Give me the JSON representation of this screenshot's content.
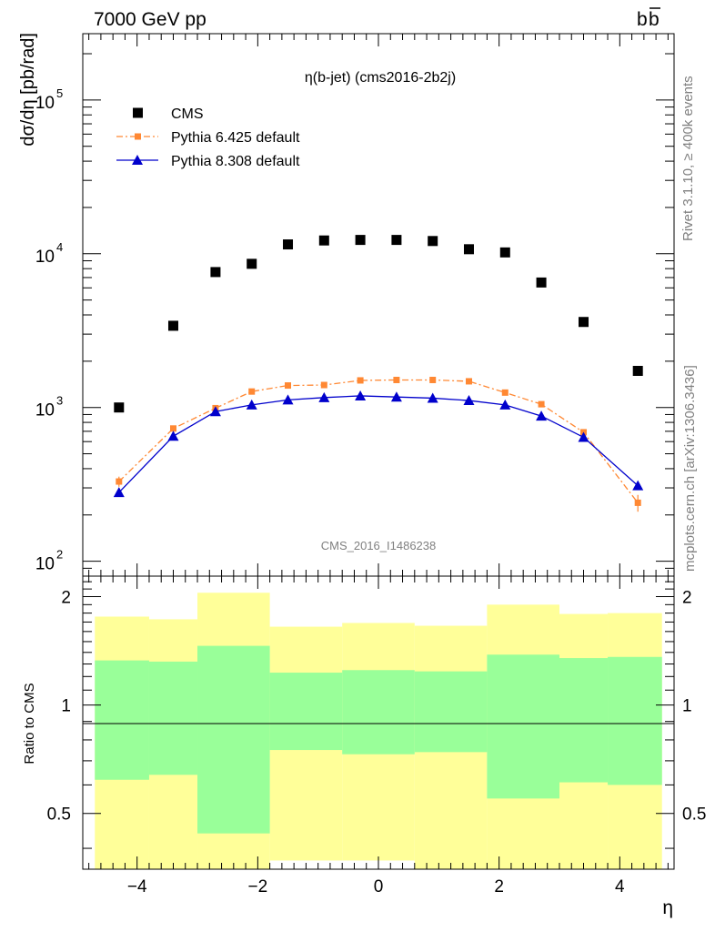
{
  "header": {
    "left": "7000 GeV pp",
    "right": "b",
    "right_bar": "b"
  },
  "side_labels": {
    "rivet": "Rivet 3.1.10, ≥ 400k events",
    "mcplots": "mcplots.cern.ch [arXiv:1306.3436]"
  },
  "watermark": "CMS_2016_I1486238",
  "chart_data": [
    {
      "type": "scatter",
      "panel": "main",
      "title": "η(b-jet) (cms2016-2b2j)",
      "ylabel": "dσ/dη [pb/rad]",
      "yscale": "log",
      "xlim": [
        -4.9,
        4.9
      ],
      "ylim": [
        80,
        270000
      ],
      "yticks": [
        {
          "value": 100,
          "base": "10",
          "exp": "2"
        },
        {
          "value": 1000,
          "base": "10",
          "exp": "3"
        },
        {
          "value": 10000,
          "base": "10",
          "exp": "4"
        },
        {
          "value": 100000,
          "base": "10",
          "exp": "5"
        }
      ],
      "legend_position": "top-left",
      "series": [
        {
          "name": "CMS",
          "color": "#000000",
          "marker": "square",
          "line": "none",
          "x": [
            -4.3,
            -3.4,
            -2.7,
            -2.1,
            -1.5,
            -0.9,
            -0.3,
            0.3,
            0.9,
            1.5,
            2.1,
            2.7,
            3.4,
            4.3
          ],
          "y": [
            1000,
            3400,
            7600,
            8600,
            11500,
            12200,
            12300,
            12300,
            12100,
            10700,
            10200,
            6500,
            3600,
            1730
          ]
        },
        {
          "name": "Pythia 6.425 default",
          "color": "#ff8833",
          "marker": "square-small",
          "line": "dashdot",
          "x": [
            -4.3,
            -3.4,
            -2.7,
            -2.1,
            -1.5,
            -0.9,
            -0.3,
            0.3,
            0.9,
            1.5,
            2.1,
            2.7,
            3.4,
            4.3
          ],
          "y": [
            330,
            730,
            990,
            1270,
            1390,
            1400,
            1500,
            1510,
            1510,
            1480,
            1250,
            1050,
            690,
            240
          ],
          "err": [
            25,
            20,
            20,
            20,
            20,
            20,
            20,
            20,
            20,
            20,
            20,
            20,
            20,
            30
          ]
        },
        {
          "name": "Pythia 8.308 default",
          "color": "#0000cc",
          "marker": "triangle",
          "line": "solid",
          "x": [
            -4.3,
            -3.4,
            -2.7,
            -2.1,
            -1.5,
            -0.9,
            -0.3,
            0.3,
            0.9,
            1.5,
            2.1,
            2.7,
            3.4,
            4.3
          ],
          "y": [
            280,
            650,
            940,
            1040,
            1120,
            1160,
            1190,
            1170,
            1150,
            1110,
            1040,
            880,
            640,
            310
          ]
        }
      ]
    },
    {
      "type": "area",
      "panel": "ratio",
      "ylabel": "Ratio to CMS",
      "xlabel": "η",
      "xlim": [
        -4.9,
        4.9
      ],
      "ylim": [
        0.35,
        2.28
      ],
      "xticks": [
        "−4",
        "−2",
        "0",
        "2",
        "4"
      ],
      "xtick_values": [
        -4,
        -2,
        0,
        2,
        4
      ],
      "yticks": [
        "0.5",
        "1",
        "2"
      ],
      "ytick_values": [
        0.5,
        1,
        2
      ],
      "bands": [
        {
          "name": "yellow",
          "color": "#ffff99",
          "bins": [
            {
              "lo": -4.7,
              "hi": -3.8,
              "low": 0.35,
              "high": 1.76
            },
            {
              "lo": -3.8,
              "hi": -3.0,
              "low": 0.35,
              "high": 1.73
            },
            {
              "lo": -3.0,
              "hi": -1.8,
              "low": 0.35,
              "high": 2.05
            },
            {
              "lo": -1.8,
              "hi": -0.6,
              "low": 0.37,
              "high": 1.65
            },
            {
              "lo": -0.6,
              "hi": 0.6,
              "low": 0.37,
              "high": 1.69
            },
            {
              "lo": 0.6,
              "hi": 1.8,
              "low": 0.35,
              "high": 1.66
            },
            {
              "lo": 1.8,
              "hi": 3.0,
              "low": 0.35,
              "high": 1.9
            },
            {
              "lo": 3.0,
              "hi": 3.8,
              "low": 0.35,
              "high": 1.79
            },
            {
              "lo": 3.8,
              "hi": 4.7,
              "low": 0.35,
              "high": 1.8
            }
          ]
        },
        {
          "name": "green",
          "color": "#99ff99",
          "bins": [
            {
              "lo": -4.7,
              "hi": -3.8,
              "low": 0.62,
              "high": 1.33
            },
            {
              "lo": -3.8,
              "hi": -3.0,
              "low": 0.64,
              "high": 1.32
            },
            {
              "lo": -3.0,
              "hi": -1.8,
              "low": 0.44,
              "high": 1.46
            },
            {
              "lo": -1.8,
              "hi": -0.6,
              "low": 0.75,
              "high": 1.23
            },
            {
              "lo": -0.6,
              "hi": 0.6,
              "low": 0.73,
              "high": 1.25
            },
            {
              "lo": 0.6,
              "hi": 1.8,
              "low": 0.74,
              "high": 1.24
            },
            {
              "lo": 1.8,
              "hi": 3.0,
              "low": 0.55,
              "high": 1.38
            },
            {
              "lo": 3.0,
              "hi": 3.8,
              "low": 0.61,
              "high": 1.35
            },
            {
              "lo": 3.8,
              "hi": 4.7,
              "low": 0.6,
              "high": 1.36
            }
          ]
        }
      ],
      "reference_line": 1
    }
  ]
}
